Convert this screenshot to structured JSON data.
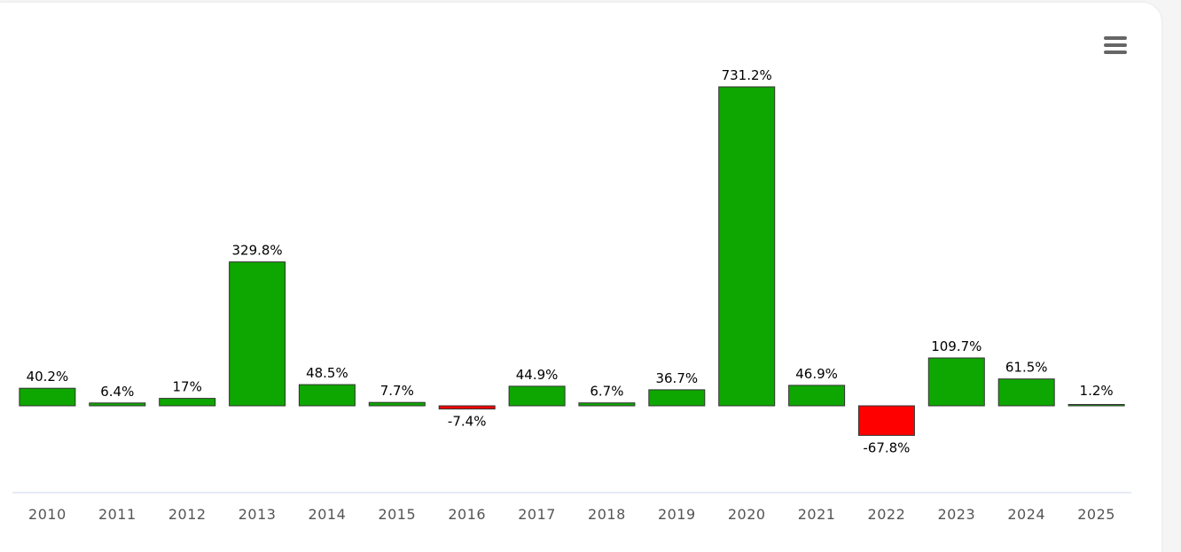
{
  "menu": {
    "icon": "hamburger-menu-icon"
  },
  "colors": {
    "positive": "#0ea600",
    "negative": "#ff0000",
    "bar_stroke": "#333333",
    "axis_line": "#ccd6eb",
    "tick_text": "#555555"
  },
  "chart_data": {
    "type": "bar",
    "categories": [
      "2010",
      "2011",
      "2012",
      "2013",
      "2014",
      "2015",
      "2016",
      "2017",
      "2018",
      "2019",
      "2020",
      "2021",
      "2022",
      "2023",
      "2024",
      "2025"
    ],
    "values": [
      40.2,
      6.4,
      17,
      329.8,
      48.5,
      7.7,
      -7.4,
      44.9,
      6.7,
      36.7,
      731.2,
      46.9,
      -67.8,
      109.7,
      61.5,
      1.2
    ],
    "value_labels": [
      "40.2%",
      "6.4%",
      "17%",
      "329.8%",
      "48.5%",
      "7.7%",
      "-7.4%",
      "44.9%",
      "6.7%",
      "36.7%",
      "731.2%",
      "46.9%",
      "-67.8%",
      "109.7%",
      "61.5%",
      "1.2%"
    ],
    "value_suffix": "%",
    "title": "",
    "xlabel": "",
    "ylabel": "",
    "grid": false,
    "legend": "none"
  }
}
